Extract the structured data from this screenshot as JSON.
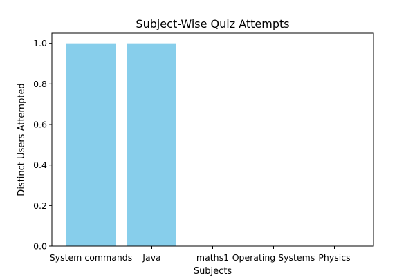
{
  "chart_data": {
    "type": "bar",
    "title": "Subject-Wise Quiz Attempts",
    "xlabel": "Subjects",
    "ylabel": "Distinct Users Attempted",
    "categories": [
      "System commands",
      "Java",
      "maths1",
      "Operating Systems",
      "Physics"
    ],
    "values": [
      1,
      1,
      0,
      0,
      0
    ],
    "ylim": [
      0,
      1.05
    ],
    "yticks": [
      0.0,
      0.2,
      0.4,
      0.6,
      0.8,
      1.0
    ],
    "ytick_labels": [
      "0.0",
      "0.2",
      "0.4",
      "0.6",
      "0.8",
      "1.0"
    ],
    "bar_color": "#87ceeb",
    "grid": false,
    "legend": "none"
  }
}
